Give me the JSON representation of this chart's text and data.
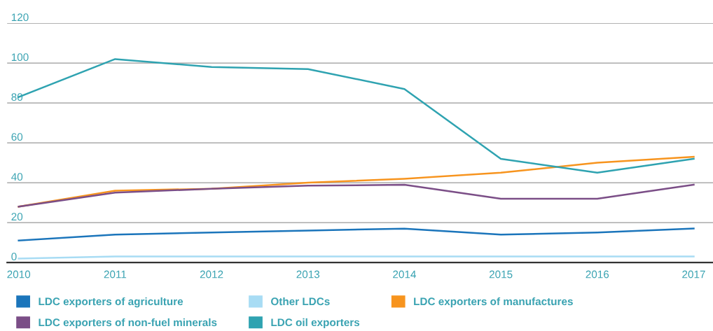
{
  "chart_data": {
    "type": "line",
    "x": [
      2010,
      2011,
      2012,
      2013,
      2014,
      2015,
      2016,
      2017
    ],
    "xlim": [
      2009.88,
      2017.2
    ],
    "xticks": [
      2010,
      2011,
      2012,
      2013,
      2014,
      2015,
      2016,
      2017
    ],
    "ylim": [
      0,
      120
    ],
    "yticks": [
      0,
      20,
      40,
      60,
      80,
      100,
      120
    ],
    "grid": "y",
    "legend": "bottom",
    "marker": "none",
    "line_style": "solid",
    "series": [
      {
        "name": "LDC exporters of agriculture",
        "color": "#1b75bb",
        "values": [
          11,
          14,
          15,
          16,
          17,
          14,
          15,
          17
        ]
      },
      {
        "name": "Other LDCs",
        "color": "#a8dcf4",
        "values": [
          2,
          3,
          3,
          3,
          3,
          3,
          3,
          3
        ]
      },
      {
        "name": "LDC exporters of manufactures",
        "color": "#f7941e",
        "values": [
          28,
          36,
          37,
          40,
          42,
          45,
          50,
          53
        ]
      },
      {
        "name": "LDC exporters of non-fuel minerals",
        "color": "#7b4e87",
        "values": [
          28,
          35,
          37,
          38.5,
          39,
          32,
          32,
          39
        ]
      },
      {
        "name": "LDC oil exporters",
        "color": "#2fa3b1",
        "values": [
          83,
          102,
          98,
          97,
          87,
          52,
          45,
          52
        ]
      }
    ]
  }
}
